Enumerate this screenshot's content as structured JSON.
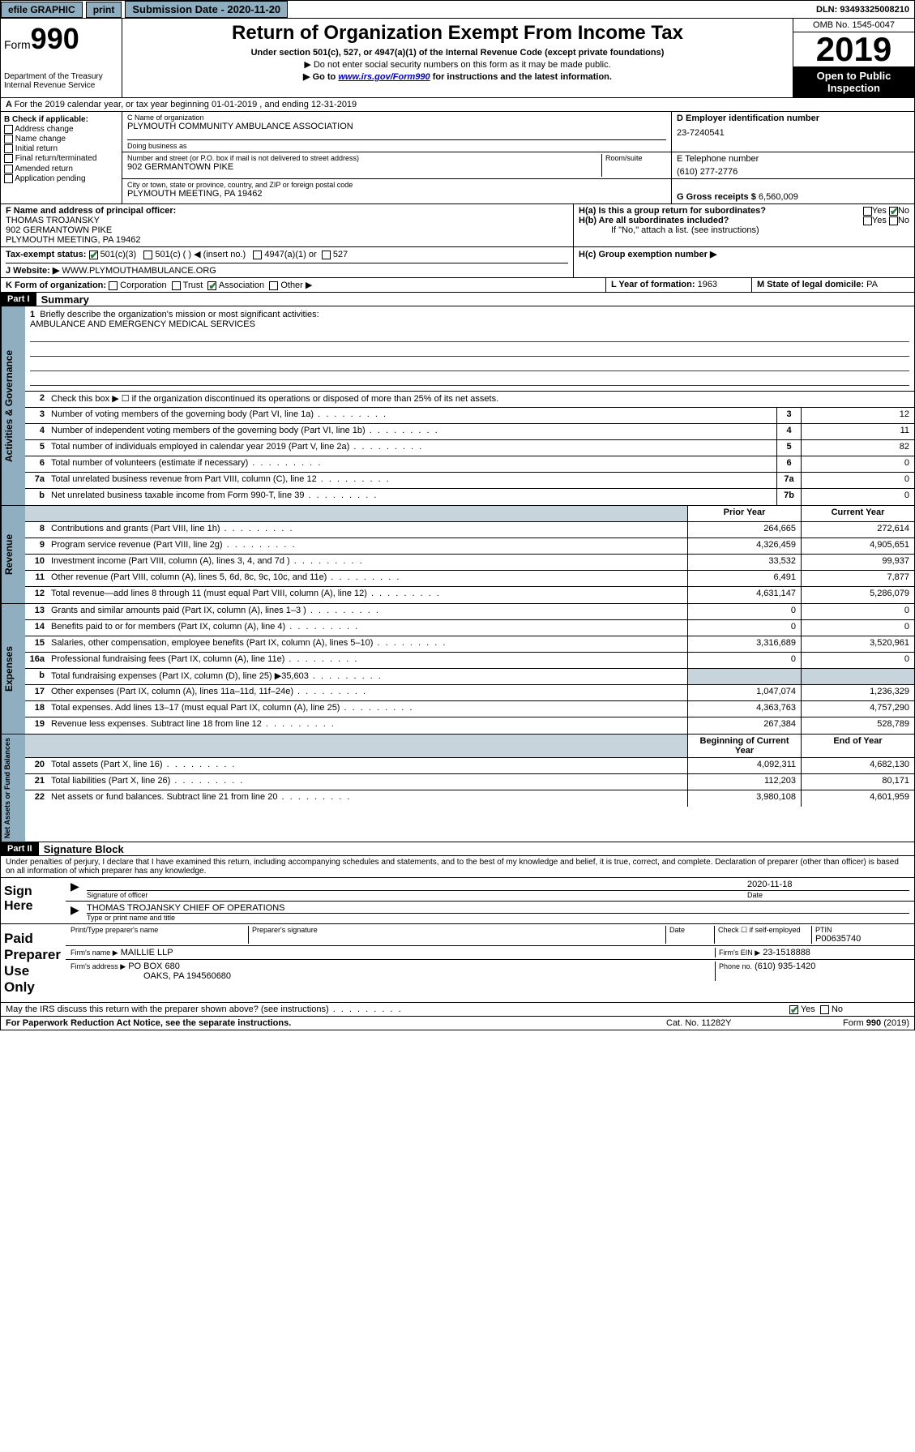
{
  "topbar": {
    "efile": "efile GRAPHIC",
    "print": "print",
    "submission_label": "Submission Date - 2020-11-20",
    "dln": "DLN: 93493325008210"
  },
  "header": {
    "form_label": "Form",
    "form_num": "990",
    "dept": "Department of the Treasury Internal Revenue Service",
    "title": "Return of Organization Exempt From Income Tax",
    "sub1": "Under section 501(c), 527, or 4947(a)(1) of the Internal Revenue Code (except private foundations)",
    "sub2": "▶ Do not enter social security numbers on this form as it may be made public.",
    "sub3_pre": "▶ Go to ",
    "sub3_link": "www.irs.gov/Form990",
    "sub3_post": " for instructions and the latest information.",
    "omb": "OMB No. 1545-0047",
    "year": "2019",
    "inspect": "Open to Public Inspection"
  },
  "line_a": "For the 2019 calendar year, or tax year beginning 01-01-2019   , and ending 12-31-2019",
  "box_b": {
    "label": "B Check if applicable:",
    "opts": [
      "Address change",
      "Name change",
      "Initial return",
      "Final return/terminated",
      "Amended return",
      "Application pending"
    ]
  },
  "box_c": {
    "name_label": "C Name of organization",
    "name": "PLYMOUTH COMMUNITY AMBULANCE ASSOCIATION",
    "dba_label": "Doing business as",
    "addr_label": "Number and street (or P.O. box if mail is not delivered to street address)",
    "room_label": "Room/suite",
    "addr": "902 GERMANTOWN PIKE",
    "city_label": "City or town, state or province, country, and ZIP or foreign postal code",
    "city": "PLYMOUTH MEETING, PA  19462"
  },
  "box_d": {
    "label": "D Employer identification number",
    "val": "23-7240541"
  },
  "box_e": {
    "label": "E Telephone number",
    "val": "(610) 277-2776"
  },
  "box_g": {
    "label": "G Gross receipts $",
    "val": "6,560,009"
  },
  "box_f": {
    "label": "F Name and address of principal officer:",
    "name": "THOMAS TROJANSKY",
    "addr1": "902 GERMANTOWN PIKE",
    "addr2": "PLYMOUTH MEETING, PA  19462"
  },
  "box_h": {
    "ha": "H(a)  Is this a group return for subordinates?",
    "hb": "H(b)  Are all subordinates included?",
    "hb_note": "If \"No,\" attach a list. (see instructions)",
    "hc": "H(c)  Group exemption number ▶"
  },
  "tax_exempt": {
    "label": "Tax-exempt status:",
    "o1": "501(c)(3)",
    "o2": "501(c) (   ) ◀ (insert no.)",
    "o3": "4947(a)(1) or",
    "o4": "527"
  },
  "website": {
    "label": "J   Website: ▶",
    "val": "WWW.PLYMOUTHAMBULANCE.ORG"
  },
  "line_k": "K Form of organization:",
  "k_opts": [
    "Corporation",
    "Trust",
    "Association",
    "Other ▶"
  ],
  "line_l": {
    "label": "L Year of formation:",
    "val": "1963"
  },
  "line_m": {
    "label": "M State of legal domicile:",
    "val": "PA"
  },
  "part1": {
    "hdr": "Part I",
    "title": "Summary",
    "l1": "Briefly describe the organization's mission or most significant activities:",
    "mission": "AMBULANCE AND EMERGENCY MEDICAL SERVICES",
    "l2": "Check this box ▶ ☐  if the organization discontinued its operations or disposed of more than 25% of its net assets.",
    "lines_gov": [
      {
        "n": "3",
        "t": "Number of voting members of the governing body (Part VI, line 1a)",
        "box": "3",
        "v": "12"
      },
      {
        "n": "4",
        "t": "Number of independent voting members of the governing body (Part VI, line 1b)",
        "box": "4",
        "v": "11"
      },
      {
        "n": "5",
        "t": "Total number of individuals employed in calendar year 2019 (Part V, line 2a)",
        "box": "5",
        "v": "82"
      },
      {
        "n": "6",
        "t": "Total number of volunteers (estimate if necessary)",
        "box": "6",
        "v": "0"
      },
      {
        "n": "7a",
        "t": "Total unrelated business revenue from Part VIII, column (C), line 12",
        "box": "7a",
        "v": "0"
      },
      {
        "n": "b",
        "t": "Net unrelated business taxable income from Form 990-T, line 39",
        "box": "7b",
        "v": "0"
      }
    ],
    "col_hdr": {
      "prior": "Prior Year",
      "current": "Current Year"
    },
    "lines_rev": [
      {
        "n": "8",
        "t": "Contributions and grants (Part VIII, line 1h)",
        "p": "264,665",
        "c": "272,614"
      },
      {
        "n": "9",
        "t": "Program service revenue (Part VIII, line 2g)",
        "p": "4,326,459",
        "c": "4,905,651"
      },
      {
        "n": "10",
        "t": "Investment income (Part VIII, column (A), lines 3, 4, and 7d )",
        "p": "33,532",
        "c": "99,937"
      },
      {
        "n": "11",
        "t": "Other revenue (Part VIII, column (A), lines 5, 6d, 8c, 9c, 10c, and 11e)",
        "p": "6,491",
        "c": "7,877"
      },
      {
        "n": "12",
        "t": "Total revenue—add lines 8 through 11 (must equal Part VIII, column (A), line 12)",
        "p": "4,631,147",
        "c": "5,286,079"
      }
    ],
    "lines_exp": [
      {
        "n": "13",
        "t": "Grants and similar amounts paid (Part IX, column (A), lines 1–3 )",
        "p": "0",
        "c": "0"
      },
      {
        "n": "14",
        "t": "Benefits paid to or for members (Part IX, column (A), line 4)",
        "p": "0",
        "c": "0"
      },
      {
        "n": "15",
        "t": "Salaries, other compensation, employee benefits (Part IX, column (A), lines 5–10)",
        "p": "3,316,689",
        "c": "3,520,961"
      },
      {
        "n": "16a",
        "t": "Professional fundraising fees (Part IX, column (A), line 11e)",
        "p": "0",
        "c": "0"
      },
      {
        "n": "b",
        "t": "Total fundraising expenses (Part IX, column (D), line 25) ▶35,603",
        "p": "",
        "c": ""
      },
      {
        "n": "17",
        "t": "Other expenses (Part IX, column (A), lines 11a–11d, 11f–24e)",
        "p": "1,047,074",
        "c": "1,236,329"
      },
      {
        "n": "18",
        "t": "Total expenses. Add lines 13–17 (must equal Part IX, column (A), line 25)",
        "p": "4,363,763",
        "c": "4,757,290"
      },
      {
        "n": "19",
        "t": "Revenue less expenses. Subtract line 18 from line 12",
        "p": "267,384",
        "c": "528,789"
      }
    ],
    "col_hdr2": {
      "begin": "Beginning of Current Year",
      "end": "End of Year"
    },
    "lines_net": [
      {
        "n": "20",
        "t": "Total assets (Part X, line 16)",
        "p": "4,092,311",
        "c": "4,682,130"
      },
      {
        "n": "21",
        "t": "Total liabilities (Part X, line 26)",
        "p": "112,203",
        "c": "80,171"
      },
      {
        "n": "22",
        "t": "Net assets or fund balances. Subtract line 21 from line 20",
        "p": "3,980,108",
        "c": "4,601,959"
      }
    ]
  },
  "vtabs": {
    "gov": "Activities & Governance",
    "rev": "Revenue",
    "exp": "Expenses",
    "net": "Net Assets or Fund Balances"
  },
  "part2": {
    "hdr": "Part II",
    "title": "Signature Block",
    "decl": "Under penalties of perjury, I declare that I have examined this return, including accompanying schedules and statements, and to the best of my knowledge and belief, it is true, correct, and complete. Declaration of preparer (other than officer) is based on all information of which preparer has any knowledge."
  },
  "sign": {
    "label": "Sign Here",
    "sig_label": "Signature of officer",
    "date": "2020-11-18",
    "date_label": "Date",
    "name": "THOMAS TROJANSKY CHIEF OF OPERATIONS",
    "name_label": "Type or print name and title"
  },
  "paid": {
    "label": "Paid Preparer Use Only",
    "h1": "Print/Type preparer's name",
    "h2": "Preparer's signature",
    "h3": "Date",
    "h4_label": "Check ☐ if self-employed",
    "h5_label": "PTIN",
    "ptin": "P00635740",
    "firm_label": "Firm's name    ▶",
    "firm": "MAILLIE LLP",
    "ein_label": "Firm's EIN ▶",
    "ein": "23-1518888",
    "addr_label": "Firm's address ▶",
    "addr1": "PO BOX 680",
    "addr2": "OAKS, PA  194560680",
    "phone_label": "Phone no.",
    "phone": "(610) 935-1420"
  },
  "discuss": "May the IRS discuss this return with the preparer shown above? (see instructions)",
  "footer": {
    "left": "For Paperwork Reduction Act Notice, see the separate instructions.",
    "mid": "Cat. No. 11282Y",
    "right": "Form 990 (2019)"
  }
}
